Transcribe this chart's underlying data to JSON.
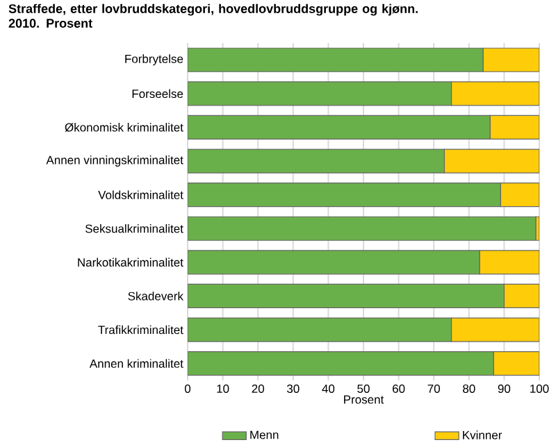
{
  "chart_data": {
    "type": "bar",
    "orientation": "horizontal",
    "stacked": true,
    "title": "Straffede, etter lovbruddskategori, hovedlovbruddsgruppe og kjønn. 2010. Prosent",
    "xlabel": "Prosent",
    "categories": [
      "Forbrytelse",
      "Forseelse",
      "Økonomisk kriminalitet",
      "Annen vinningskriminalitet",
      "Voldskriminalitet",
      "Seksualkriminalitet",
      "Narkotikakriminalitet",
      "Skadeverk",
      "Trafikkriminalitet",
      "Annen kriminalitet"
    ],
    "series": [
      {
        "name": "Menn",
        "color": "#6ab04a",
        "values": [
          84,
          75,
          86,
          73,
          89,
          99,
          83,
          90,
          75,
          87
        ]
      },
      {
        "name": "Kvinner",
        "color": "#ffcc0a",
        "values": [
          16,
          25,
          14,
          27,
          11,
          1,
          17,
          10,
          25,
          13
        ]
      }
    ],
    "xlim": [
      0,
      100
    ],
    "xticks": [
      0,
      10,
      20,
      30,
      40,
      50,
      60,
      70,
      80,
      90,
      100
    ],
    "grid": "x",
    "legend": "bottom"
  }
}
